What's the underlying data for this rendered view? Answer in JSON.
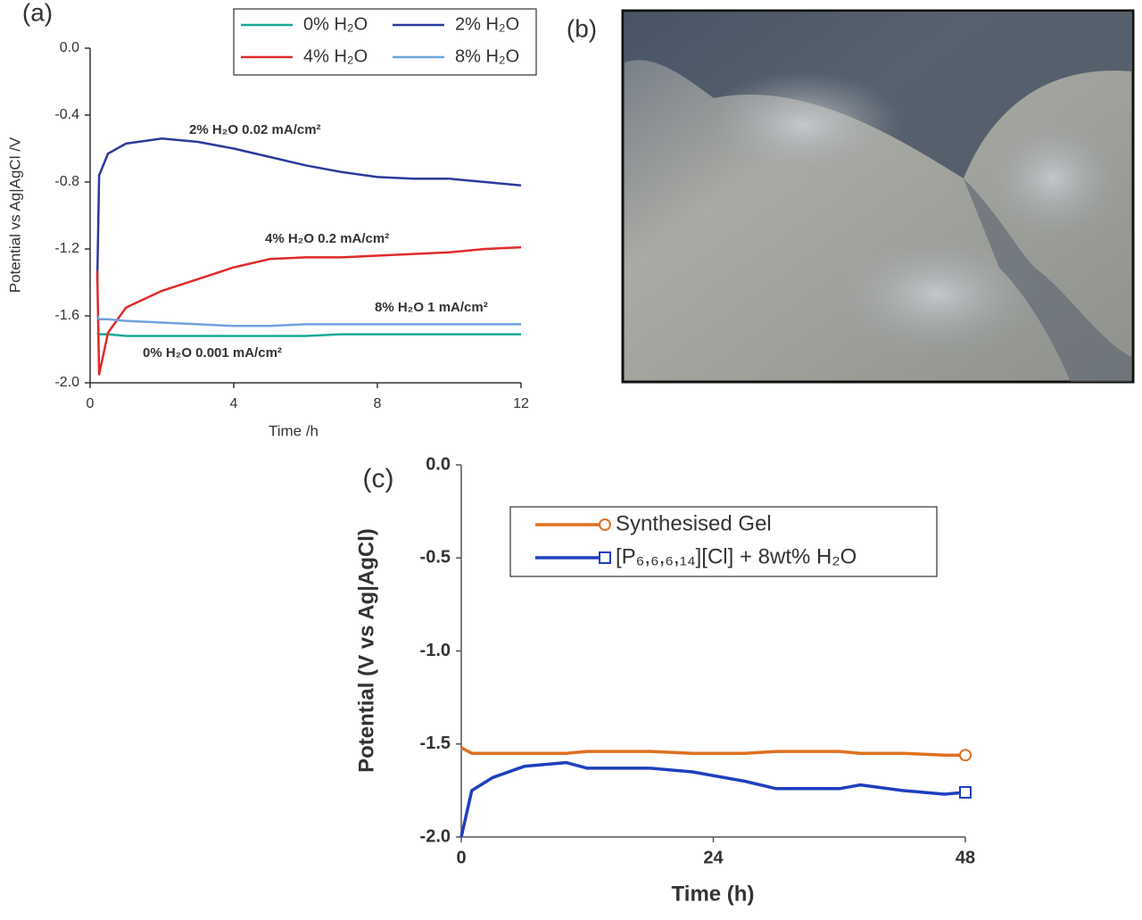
{
  "chart_data": [
    {
      "type": "line",
      "panel_label": "(a)",
      "x_label": "Time /h",
      "y_label": "Potential vs Ag|AgCl /V",
      "x": [
        0.2,
        0.25,
        0.5,
        1,
        2,
        3,
        4,
        5,
        6,
        7,
        8,
        9,
        10,
        11,
        12
      ],
      "series": [
        {
          "name": "0% H₂O",
          "color": "#1aa89a",
          "values": [
            -1.7,
            -1.71,
            -1.71,
            -1.72,
            -1.72,
            -1.72,
            -1.72,
            -1.72,
            -1.72,
            -1.71,
            -1.71,
            -1.71,
            -1.71,
            -1.71,
            -1.71
          ]
        },
        {
          "name": "2% H₂O",
          "color": "#2b3a9e",
          "values": [
            -1.4,
            -0.76,
            -0.63,
            -0.57,
            -0.54,
            -0.56,
            -0.6,
            -0.65,
            -0.7,
            -0.74,
            -0.77,
            -0.78,
            -0.78,
            -0.8,
            -0.82
          ]
        },
        {
          "name": "4% H₂O",
          "color": "#e02a2a",
          "values": [
            -1.33,
            -1.95,
            -1.7,
            -1.55,
            -1.45,
            -1.38,
            -1.31,
            -1.26,
            -1.25,
            -1.25,
            -1.24,
            -1.23,
            -1.22,
            -1.2,
            -1.19
          ]
        },
        {
          "name": "8% H₂O",
          "color": "#6fa3dc",
          "values": [
            -1.6,
            -1.62,
            -1.62,
            -1.63,
            -1.64,
            -1.65,
            -1.66,
            -1.66,
            -1.65,
            -1.65,
            -1.65,
            -1.65,
            -1.65,
            -1.65,
            -1.65
          ]
        }
      ],
      "annotations": [
        {
          "text": "2% H₂O 0.02 mA/cm²",
          "color": "#2b3a9e"
        },
        {
          "text": "4% H₂O 0.2 mA/cm²",
          "color": "#e02a2a"
        },
        {
          "text": "8% H₂O 1 mA/cm²",
          "color": "#6fa3dc"
        },
        {
          "text": "0% H₂O 0.001 mA/cm²",
          "color": "#1aa89a"
        }
      ],
      "xlim": [
        0,
        12
      ],
      "xticks": [
        0,
        4,
        8,
        12
      ],
      "ylim": [
        -2,
        0
      ],
      "yticks": [
        {
          "value": -2,
          "label": "-2.0"
        },
        -1.6,
        -1.2,
        -0.8,
        -0.4,
        {
          "value": 0,
          "label": "0.0"
        }
      ],
      "legend": "top-right",
      "grid": false
    },
    {
      "type": "line",
      "panel_label": "(c)",
      "x_label": "Time (h)",
      "y_label": "Potential (V vs Ag|AgCl)",
      "x": [
        0,
        1,
        3,
        6,
        10,
        12,
        18,
        22,
        27,
        30,
        36,
        38,
        42,
        46,
        48
      ],
      "series": [
        {
          "name": "Synthesised Gel",
          "color": "#e07020",
          "marker": "circle",
          "values": [
            -1.52,
            -1.55,
            -1.55,
            -1.55,
            -1.55,
            -1.54,
            -1.54,
            -1.55,
            -1.55,
            -1.54,
            -1.54,
            -1.55,
            -1.55,
            -1.56,
            -1.56
          ]
        },
        {
          "name": "[P₆,₆,₆,₁₄][Cl] + 8wt% H₂O",
          "color": "#1f3fbf",
          "marker": "square",
          "values": [
            -2.0,
            -1.75,
            -1.68,
            -1.62,
            -1.6,
            -1.63,
            -1.63,
            -1.65,
            -1.7,
            -1.74,
            -1.74,
            -1.72,
            -1.75,
            -1.77,
            -1.76
          ]
        }
      ],
      "xlim": [
        0,
        48
      ],
      "xticks": [
        0,
        24,
        48
      ],
      "ylim": [
        -2,
        0
      ],
      "yticks": [
        {
          "value": -2,
          "label": "-2.0"
        },
        -1.5,
        {
          "value": -1,
          "label": "-1.0"
        },
        -0.5,
        {
          "value": 0,
          "label": "0.0"
        }
      ],
      "legend": "top-right",
      "grid": false
    }
  ],
  "photo": {
    "panel_label": "(b)"
  }
}
